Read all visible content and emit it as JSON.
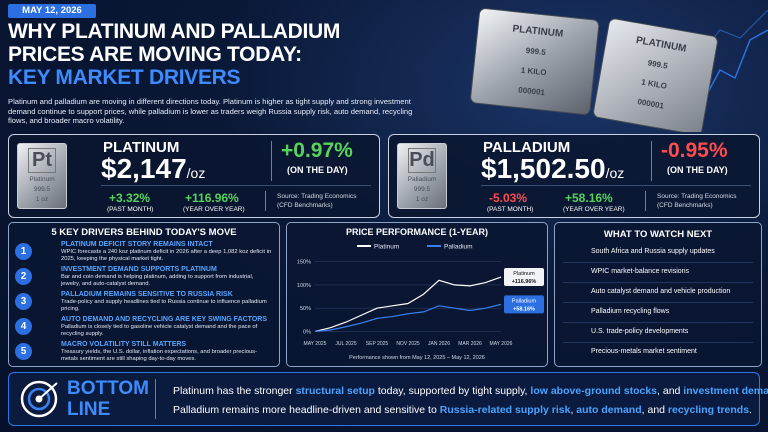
{
  "header": {
    "date": "MAY 12, 2026",
    "title_lines": [
      "WHY PLATINUM AND PALLADIUM",
      "PRICES ARE MOVING TODAY:"
    ],
    "subtitle": "KEY MARKET DRIVERS",
    "intro": "Platinum and palladium are moving in different directions today. Platinum is higher as tight supply and strong investment demand continue to support prices, while palladium is lower as traders weigh Russia supply risk, auto demand, recycling flows, and broader macro volatility."
  },
  "hero_bars": [
    [
      "PLATINUM",
      "999.5",
      "1 KILO",
      "000001"
    ],
    [
      "PLATINUM",
      "999.5",
      "1 KILO",
      "000001"
    ]
  ],
  "metals": [
    {
      "symbol": "Pt",
      "bar_lines": [
        "Platinum",
        "999.5",
        "1 oz"
      ],
      "name": "PLATINUM",
      "price": "$2,147",
      "unit": "/oz",
      "day_change": "+0.97%",
      "day_label": "(ON THE DAY)",
      "month_change": "+3.32%",
      "month_label": "(PAST MONTH)",
      "year_change": "+116.96%",
      "year_label": "(YEAR OVER YEAR)",
      "source": [
        "Source: Trading Economics",
        "(CFD Benchmarks)"
      ]
    },
    {
      "symbol": "Pd",
      "bar_lines": [
        "Palladium",
        "999.5",
        "1 oz"
      ],
      "name": "PALLADIUM",
      "price": "$1,502.50",
      "unit": "/oz",
      "day_change": "-0.95%",
      "day_label": "(ON THE DAY)",
      "month_change": "-5.03%",
      "month_label": "(PAST MONTH)",
      "year_change": "+58.16%",
      "year_label": "(YEAR OVER YEAR)",
      "source": [
        "Source: Trading Economics",
        "(CFD Benchmarks)"
      ]
    }
  ],
  "drivers": {
    "title": "5 KEY DRIVERS BEHIND TODAY'S MOVE",
    "items": [
      {
        "number": "1",
        "heading": "PLATINUM DEFICIT STORY REMAINS INTACT",
        "text": "WPIC forecasts a 240 koz platinum deficit in 2026 after a deep 1,082 koz deficit in 2025, keeping the physical market tight."
      },
      {
        "number": "2",
        "heading": "INVESTMENT DEMAND SUPPORTS PLATINUM",
        "text": "Bar and coin demand is helping platinum, adding to support from industrial, jewelry, and auto-catalyst demand."
      },
      {
        "number": "3",
        "heading": "PALLADIUM REMAINS SENSITIVE TO RUSSIA RISK",
        "text": "Trade-policy and supply headlines tied to Russia continue to influence palladium pricing."
      },
      {
        "number": "4",
        "heading": "AUTO DEMAND AND RECYCLING ARE KEY SWING FACTORS",
        "text": "Palladium is closely tied to gasoline vehicle catalyst demand and the pace of recycling supply."
      },
      {
        "number": "5",
        "heading": "MACRO VOLATILITY STILL MATTERS",
        "text": "Treasury yields, the U.S. dollar, inflation expectations, and broader precious-metals sentiment are still shaping day-to-day moves."
      }
    ]
  },
  "chart_data": {
    "type": "line",
    "title": "PRICE PERFORMANCE (1-YEAR)",
    "note": "Performance shown from May 12, 2025 – May 12, 2026",
    "categories": [
      "MAY 2025",
      null,
      "JUL 2025",
      null,
      "SEP 2025",
      null,
      "NOV 2025",
      null,
      "JAN 2026",
      null,
      "MAR 2026",
      null,
      "MAY 2026"
    ],
    "series": [
      {
        "name": "Platinum",
        "color": "#ffffff",
        "values": [
          0,
          8,
          20,
          35,
          50,
          55,
          60,
          80,
          110,
          100,
          98,
          105,
          116.96
        ],
        "value_labels": [
          null,
          null,
          null,
          null,
          null,
          null,
          null,
          null,
          null,
          null,
          null,
          null,
          "+116.96%"
        ]
      },
      {
        "name": "Palladium",
        "color": "#3b7ff0",
        "values": [
          0,
          3,
          10,
          18,
          28,
          32,
          38,
          42,
          55,
          50,
          45,
          50,
          58.16
        ],
        "value_labels": [
          null,
          null,
          null,
          null,
          null,
          null,
          null,
          null,
          null,
          null,
          null,
          null,
          "+58.16%"
        ]
      }
    ],
    "ylim": [
      -12,
      160
    ],
    "yticks": [
      {
        "value": 0,
        "label": "0%"
      },
      {
        "value": 50,
        "label": "50%"
      },
      {
        "value": 100,
        "label": "100%"
      },
      {
        "value": 150,
        "label": "150%"
      }
    ],
    "grid": true
  },
  "watch": {
    "title": "WHAT TO WATCH NEXT",
    "items": [
      "South Africa and Russia supply updates",
      "WPIC market-balance revisions",
      "Auto catalyst demand and vehicle production",
      "Palladium recycling flows",
      "U.S. trade-policy developments",
      "Precious-metals market sentiment"
    ]
  },
  "bottom_line": {
    "label": [
      "BOTTOM",
      "LINE"
    ],
    "lines": [
      [
        "Platinum has the stronger ",
        "structural setup",
        " today, supported by tight supply, ",
        "low above-ground stocks",
        ", and ",
        "investment demand",
        "."
      ],
      [
        "Palladium remains more headline-driven and sensitive to ",
        "Russia-related supply risk",
        ", ",
        "auto demand",
        ", and ",
        "recycling trends",
        "."
      ]
    ]
  }
}
